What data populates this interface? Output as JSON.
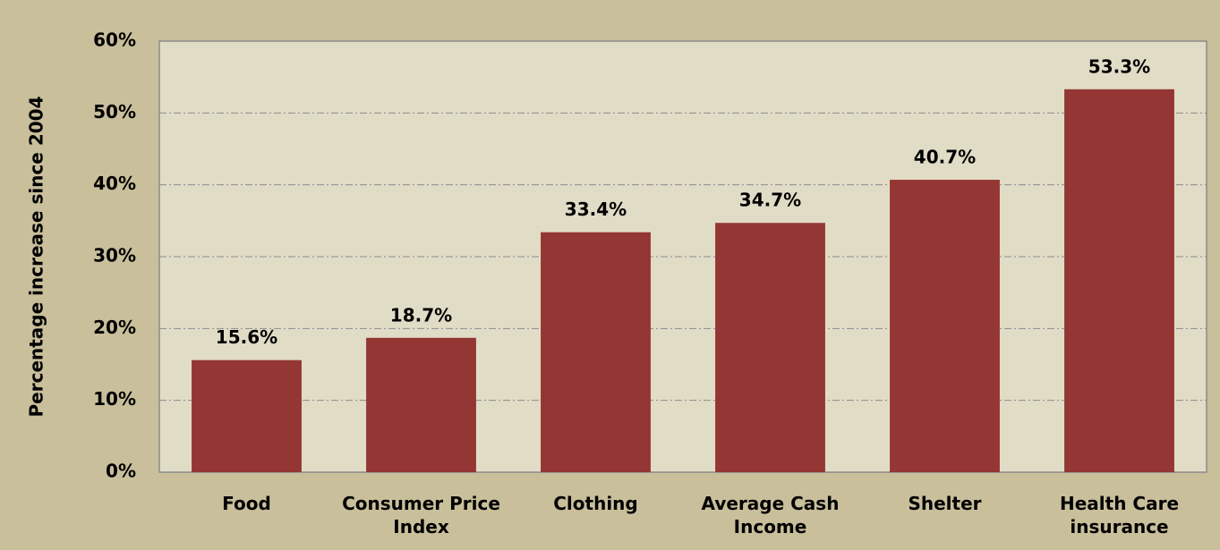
{
  "chart_data": {
    "type": "bar",
    "y_label": "Percentage increase since 2004",
    "categories": [
      "Food",
      "Consumer Price Index",
      "Clothing",
      "Average Cash Income",
      "Shelter",
      "Health Care insurance"
    ],
    "values": [
      15.6,
      18.7,
      33.4,
      34.7,
      40.7,
      53.3
    ],
    "value_labels": [
      "15.6%",
      "18.7%",
      "33.4%",
      "34.7%",
      "40.7%",
      "53.3%"
    ],
    "color": "#943634",
    "ylim": [
      0,
      60
    ],
    "yticks": [
      {
        "value": 0,
        "label": "0%"
      },
      {
        "value": 10,
        "label": "10%"
      },
      {
        "value": 20,
        "label": "20%"
      },
      {
        "value": 30,
        "label": "30%"
      },
      {
        "value": 40,
        "label": "40%"
      },
      {
        "value": 50,
        "label": "50%"
      },
      {
        "value": 60,
        "label": "60%"
      }
    ],
    "grid": true
  }
}
